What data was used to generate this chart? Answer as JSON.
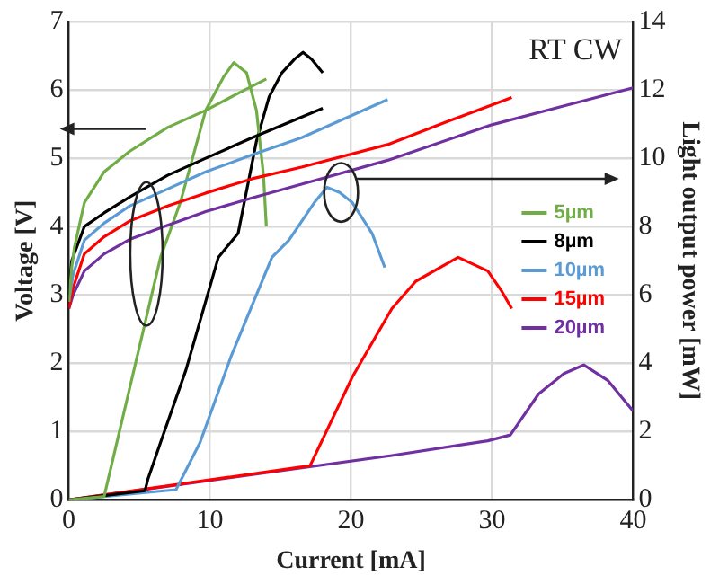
{
  "chart_data": {
    "type": "line",
    "xlabel": "Current [mA]",
    "ylabel": "Voltage [V]",
    "y2label": "Light output power [mW]",
    "annotations": [
      "RT CW"
    ],
    "xlim": [
      0,
      40
    ],
    "xticks": [
      0,
      10,
      20,
      30,
      40
    ],
    "ylim": [
      0,
      7
    ],
    "yticks": [
      0,
      1,
      2,
      3,
      4,
      5,
      6,
      7
    ],
    "y2lim": [
      0,
      14
    ],
    "y2ticks": [
      0,
      2,
      4,
      6,
      8,
      10,
      12,
      14
    ],
    "grid": true,
    "legend": "bottom right",
    "series": [
      {
        "name": "5µm",
        "color": "#70ad47",
        "x": [
          0,
          0.2,
          0.4,
          1.1,
          2.5,
          4.3,
          7,
          9.7,
          12,
          14
        ],
        "values": [
          2.9,
          3.4,
          3.7,
          4.35,
          4.8,
          5.1,
          5.45,
          5.7,
          5.95,
          6.16
        ]
      },
      {
        "name": "8µm",
        "color": "#000000",
        "x": [
          0,
          0.2,
          1.1,
          2.5,
          4.3,
          7,
          9.7,
          13,
          18
        ],
        "values": [
          3.0,
          3.5,
          4.0,
          4.2,
          4.43,
          4.75,
          5.0,
          5.3,
          5.73
        ]
      },
      {
        "name": "10µm",
        "color": "#5b9bd5",
        "x": [
          0,
          0.3,
          1.1,
          2.5,
          4.3,
          7,
          9.7,
          13,
          16.5,
          22.6
        ],
        "values": [
          2.9,
          3.3,
          3.8,
          4.05,
          4.3,
          4.55,
          4.8,
          5.05,
          5.3,
          5.86
        ]
      },
      {
        "name": "15µm",
        "color": "#ff0000",
        "x": [
          0,
          0.3,
          1.1,
          2.5,
          4.3,
          7,
          9.7,
          13,
          16.5,
          22.6,
          27,
          31.4
        ],
        "values": [
          2.8,
          3.1,
          3.6,
          3.85,
          4.08,
          4.3,
          4.49,
          4.7,
          4.87,
          5.2,
          5.55,
          5.89
        ]
      },
      {
        "name": "20µm",
        "color": "#7030a0",
        "x": [
          0,
          0.3,
          1.1,
          2.5,
          4.3,
          7,
          9.7,
          13,
          16.5,
          22.6,
          30,
          35,
          40
        ],
        "values": [
          2.8,
          3.0,
          3.35,
          3.6,
          3.81,
          4.02,
          4.22,
          4.42,
          4.62,
          4.97,
          5.49,
          5.76,
          6.03
        ]
      },
      {
        "color": "#70ad47",
        "axis": "y2",
        "x": [
          0,
          2.5,
          4.5,
          6.5,
          7.9,
          9.7,
          11,
          11.7,
          12.6,
          13.3,
          13.8,
          14
        ],
        "values": [
          0,
          0.1,
          3.6,
          7.1,
          8.7,
          11.4,
          12.4,
          12.8,
          12.5,
          11.4,
          9.5,
          8.0
        ]
      },
      {
        "color": "#000000",
        "axis": "y2",
        "x": [
          0,
          5.4,
          5.6,
          6.5,
          8.3,
          10.6,
          12,
          13.3,
          14.2,
          15.1,
          16,
          16.6,
          17.2,
          18
        ],
        "values": [
          0,
          0.27,
          0.6,
          1.68,
          3.8,
          7.1,
          7.8,
          10.5,
          11.8,
          12.5,
          12.9,
          13.1,
          12.9,
          12.5
        ]
      },
      {
        "color": "#5b9bd5",
        "axis": "y2",
        "x": [
          0,
          7.6,
          9.3,
          11.5,
          13.3,
          14.4,
          15.6,
          17.4,
          18.3,
          19.2,
          20.1,
          21.5,
          22.4
        ],
        "values": [
          0,
          0.3,
          1.68,
          4.2,
          6.0,
          7.1,
          7.6,
          8.7,
          9.15,
          9.0,
          8.7,
          7.8,
          6.8
        ]
      },
      {
        "color": "#ff0000",
        "axis": "y2",
        "x": [
          0,
          17.1,
          20.1,
          22.9,
          24.6,
          27.6,
          29.7,
          30.7,
          31.4
        ],
        "values": [
          0,
          1.0,
          3.6,
          5.6,
          6.4,
          7.1,
          6.7,
          6.1,
          5.6
        ]
      },
      {
        "color": "#7030a0",
        "axis": "y2",
        "x": [
          0,
          22.9,
          29.7,
          31.3,
          33.3,
          35.1,
          36.5,
          38.2,
          40
        ],
        "values": [
          0,
          1.3,
          1.73,
          1.9,
          3.1,
          3.7,
          3.95,
          3.5,
          2.6
        ]
      }
    ]
  }
}
